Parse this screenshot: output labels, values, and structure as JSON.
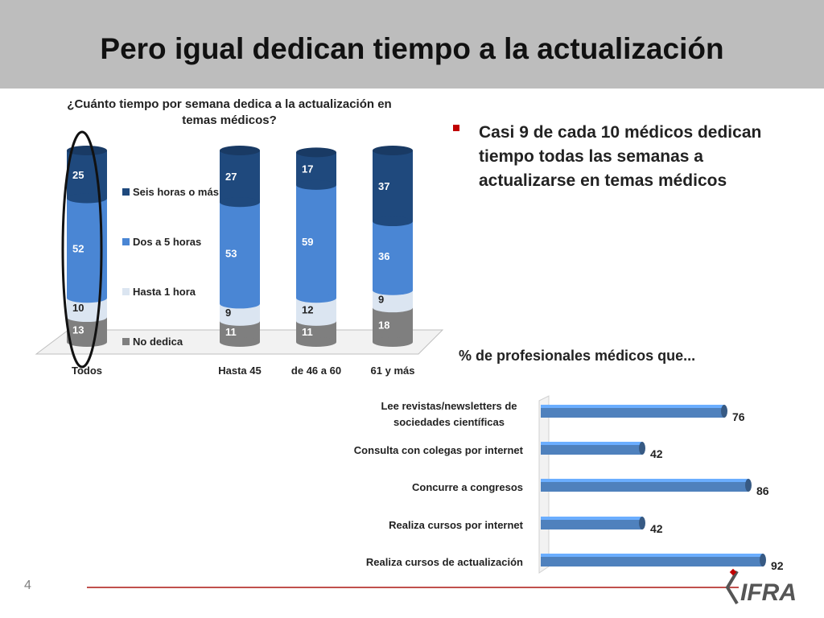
{
  "slide": {
    "title": "Pero igual dedican tiempo a la actualización",
    "page_number": "4",
    "bullet": "Casi 9 de cada 10 médicos dedican tiempo todas las semanas a actualizarse en temas médicos",
    "logo_text": "CIFRA"
  },
  "colors": {
    "header_bg": "#bdbdbd",
    "seis_horas": "#1f497d",
    "dos_a_5": "#4a86d4",
    "hasta_1": "#dbe5f1",
    "no_dedica": "#7f7f7f",
    "bar_blue": "#4f81bd",
    "accent_red": "#c00000"
  },
  "chart_data": [
    {
      "type": "bar",
      "stacked": true,
      "title": "¿Cuánto tiempo por semana dedica a la actualización en temas médicos?",
      "categories": [
        "Todos",
        "Hasta 45",
        "de 46 a 60",
        "61 y más"
      ],
      "series": [
        {
          "name": "No dedica",
          "values": [
            13,
            11,
            11,
            18
          ]
        },
        {
          "name": "Hasta 1 hora",
          "values": [
            10,
            9,
            12,
            9
          ]
        },
        {
          "name": "Dos a 5 horas",
          "values": [
            52,
            53,
            59,
            36
          ]
        },
        {
          "name": "Seis horas o más",
          "values": [
            25,
            27,
            17,
            37
          ]
        }
      ],
      "legend_order": [
        "Seis horas o más",
        "Dos a 5 horas",
        "Hasta 1 hora",
        "No dedica"
      ],
      "ylim": [
        0,
        100
      ],
      "highlighted_category": "Todos"
    },
    {
      "type": "bar",
      "orientation": "horizontal",
      "title": "% de profesionales médicos que...",
      "categories": [
        "Lee revistas/newsletters de sociedades científicas",
        "Consulta con colegas por internet",
        "Concurre a congresos",
        "Realiza cursos por internet",
        "Realiza cursos de actualización"
      ],
      "values": [
        76,
        42,
        86,
        42,
        92
      ],
      "xlim": [
        0,
        100
      ]
    }
  ]
}
